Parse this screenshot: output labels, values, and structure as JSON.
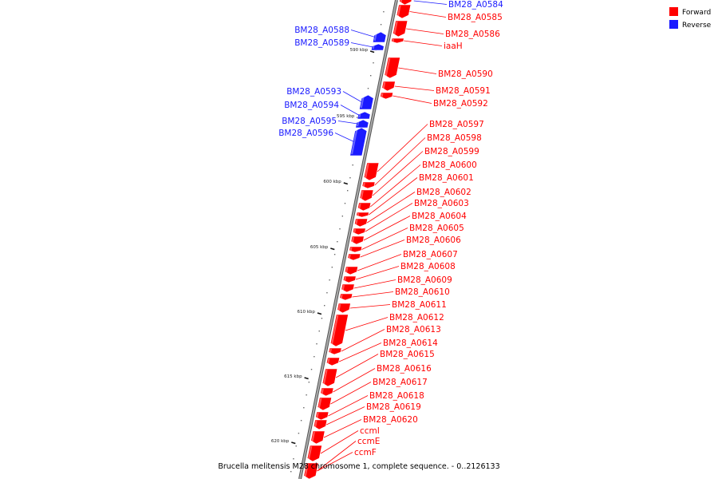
{
  "colors": {
    "forward": "#ff0000",
    "reverse": "#1a1aff",
    "backbone": "#888888",
    "ticks": "#111111"
  },
  "legend": [
    {
      "label": "Forward",
      "color": "#ff0000"
    },
    {
      "label": "Reverse",
      "color": "#1a1aff"
    }
  ],
  "caption": "Brucella melitensis M28 chromosome 1, complete sequence. - 0..2126133",
  "scale_ticks": [
    "590 kbp",
    "595 kbp",
    "600 kbp",
    "605 kbp",
    "610 kbp",
    "615 kbp",
    "620 kbp"
  ],
  "reverse_genes": [
    {
      "name": "BM28_A0584"
    },
    {
      "name": "BM28_A0588"
    },
    {
      "name": "BM28_A0589"
    },
    {
      "name": "BM28_A0593"
    },
    {
      "name": "BM28_A0594"
    },
    {
      "name": "BM28_A0595"
    },
    {
      "name": "BM28_A0596"
    }
  ],
  "forward_genes": [
    {
      "name": "BM28_A0585"
    },
    {
      "name": "BM28_A0586"
    },
    {
      "name": "iaaH"
    },
    {
      "name": "BM28_A0590"
    },
    {
      "name": "BM28_A0591"
    },
    {
      "name": "BM28_A0592"
    },
    {
      "name": "BM28_A0597"
    },
    {
      "name": "BM28_A0598"
    },
    {
      "name": "BM28_A0599"
    },
    {
      "name": "BM28_A0600"
    },
    {
      "name": "BM28_A0601"
    },
    {
      "name": "BM28_A0602"
    },
    {
      "name": "BM28_A0603"
    },
    {
      "name": "BM28_A0604"
    },
    {
      "name": "BM28_A0605"
    },
    {
      "name": "BM28_A0606"
    },
    {
      "name": "BM28_A0607"
    },
    {
      "name": "BM28_A0608"
    },
    {
      "name": "BM28_A0609"
    },
    {
      "name": "BM28_A0610"
    },
    {
      "name": "BM28_A0611"
    },
    {
      "name": "BM28_A0612"
    },
    {
      "name": "BM28_A0613"
    },
    {
      "name": "BM28_A0614"
    },
    {
      "name": "BM28_A0615"
    },
    {
      "name": "BM28_A0616"
    },
    {
      "name": "BM28_A0617"
    },
    {
      "name": "BM28_A0618"
    },
    {
      "name": "BM28_A0619"
    },
    {
      "name": "BM28_A0620"
    },
    {
      "name": "ccmI"
    },
    {
      "name": "ccmE"
    },
    {
      "name": "ccmF"
    }
  ]
}
